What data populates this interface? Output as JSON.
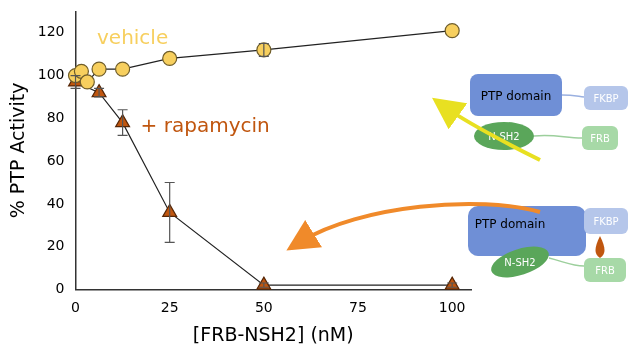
{
  "chart_data": {
    "type": "scatter",
    "x_label": "[FRB-NSH2] (nM)",
    "y_label": "% PTP Activity",
    "xlim": [
      0,
      105
    ],
    "xticks": [
      0,
      25,
      50,
      75,
      100
    ],
    "ylim": [
      0,
      130
    ],
    "yticks": [
      0,
      20,
      40,
      60,
      80,
      100,
      120
    ],
    "grid": false,
    "series": [
      {
        "name": "vehicle",
        "color": "#f7cf5e",
        "marker": "circle",
        "line_style": "solid",
        "x": [
          0,
          1.5625,
          3.125,
          6.25,
          12.5,
          25,
          50,
          100
        ],
        "values": [
          100,
          102,
          97,
          103,
          103,
          108,
          112,
          121
        ],
        "errors": [
          0,
          0,
          0,
          0,
          0,
          0,
          3,
          0
        ]
      },
      {
        "name": "+ rapamycin",
        "color": "#c0560f",
        "marker": "triangle",
        "line_style": "solid",
        "x": [
          0,
          6.25,
          12.5,
          25,
          50,
          100
        ],
        "values": [
          97,
          92,
          78,
          36,
          2,
          2
        ],
        "errors": [
          3,
          2,
          6,
          14,
          1,
          1
        ]
      }
    ],
    "schematics": [
      [
        "PTP domain",
        "FKBP",
        "N-SH2",
        "FRB"
      ],
      [
        "PTP domain",
        "FKBP",
        "N-SH2",
        "FRB"
      ]
    ]
  }
}
